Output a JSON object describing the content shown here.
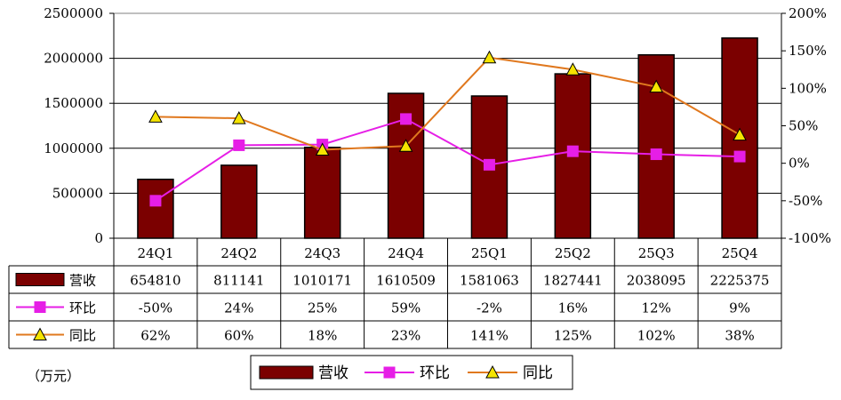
{
  "chart_data": {
    "type": "bar-line-combo",
    "categories": [
      "24Q1",
      "24Q2",
      "24Q3",
      "24Q4",
      "25Q1",
      "25Q2",
      "25Q3",
      "25Q4"
    ],
    "series": [
      {
        "name": "营收",
        "kind": "bar",
        "axis": "left",
        "color": "#7b0000",
        "values": [
          654810,
          811141,
          1010171,
          1610509,
          1581063,
          1827441,
          2038095,
          2225375
        ],
        "labels": [
          "654810",
          "811141",
          "1010171",
          "1610509",
          "1581063",
          "1827441",
          "2038095",
          "2225375"
        ]
      },
      {
        "name": "环比",
        "kind": "line",
        "axis": "right",
        "color": "#e61ee6",
        "marker": "square",
        "values": [
          -50,
          24,
          25,
          59,
          -2,
          16,
          12,
          9
        ],
        "labels": [
          "-50%",
          "24%",
          "25%",
          "59%",
          "-2%",
          "16%",
          "12%",
          "9%"
        ]
      },
      {
        "name": "同比",
        "kind": "line",
        "axis": "right",
        "color": "#e0781e",
        "marker": "triangle",
        "values": [
          62,
          60,
          18,
          23,
          141,
          125,
          102,
          38
        ],
        "labels": [
          "62%",
          "60%",
          "18%",
          "23%",
          "141%",
          "125%",
          "102%",
          "38%"
        ]
      }
    ],
    "y_left": {
      "min": 0,
      "max": 2500000,
      "step": 500000,
      "ticks": [
        "0",
        "500000",
        "1000000",
        "1500000",
        "2000000",
        "2500000"
      ]
    },
    "y_right": {
      "min": -100,
      "max": 200,
      "step": 50,
      "ticks": [
        "-100%",
        "-50%",
        "0%",
        "50%",
        "100%",
        "150%",
        "200%"
      ]
    },
    "unit": "（万元）",
    "legend": [
      "营收",
      "环比",
      "同比"
    ],
    "legend_position": "bottom",
    "grid": true
  }
}
